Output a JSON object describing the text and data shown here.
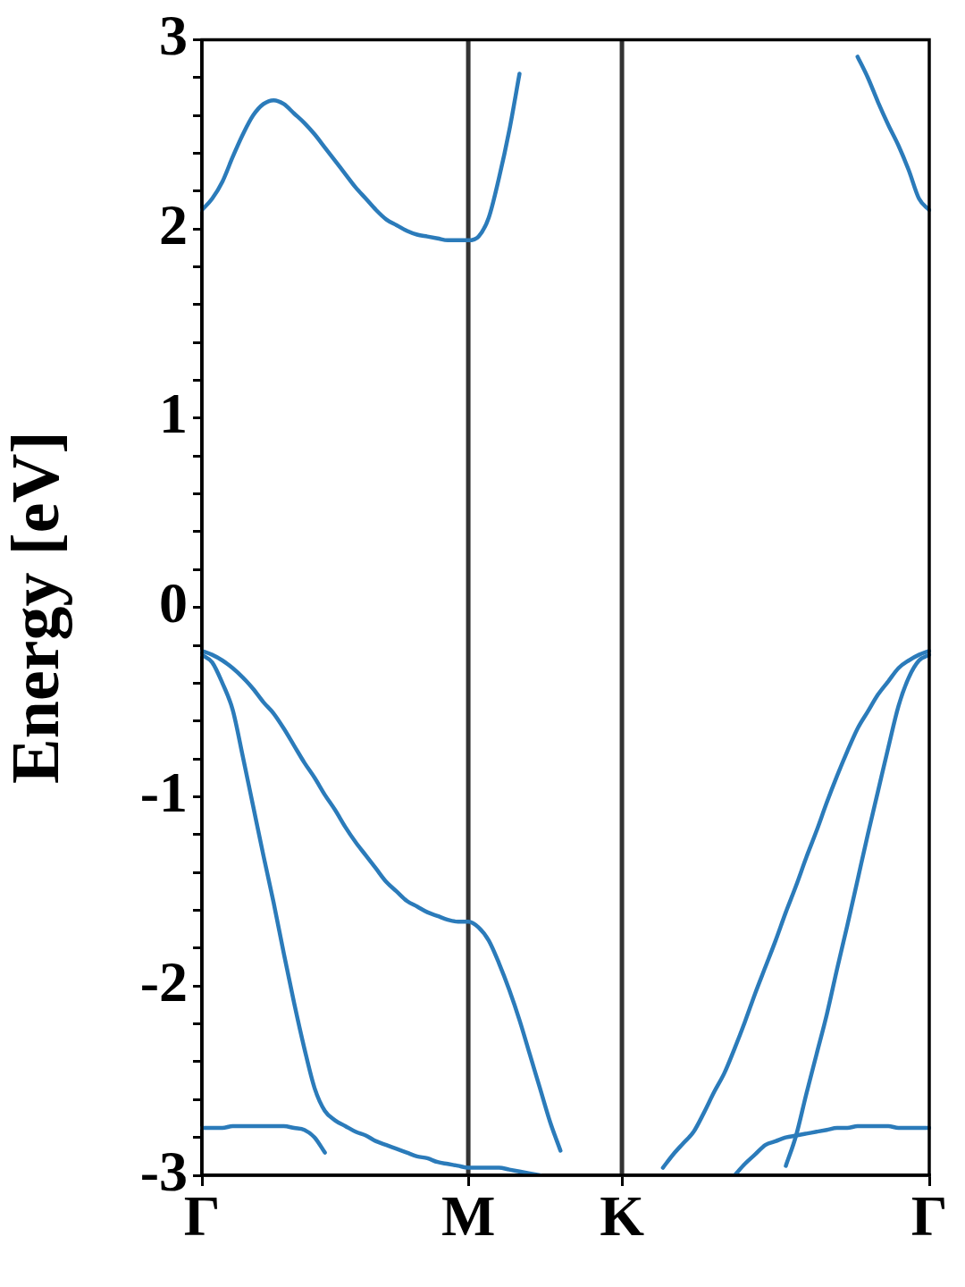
{
  "chart_data": {
    "type": "line",
    "ylabel": "Energy [eV]",
    "ylim": [
      -3,
      3
    ],
    "categories": [
      "Γ",
      null,
      null,
      null,
      null,
      null,
      null,
      null,
      null,
      null,
      null,
      null,
      null,
      null,
      null,
      null,
      null,
      null,
      null,
      null,
      null,
      null,
      null,
      null,
      null,
      null,
      "M",
      null,
      null,
      null,
      null,
      null,
      null,
      null,
      null,
      null,
      null,
      null,
      null,
      null,
      null,
      "K",
      null,
      null,
      null,
      null,
      null,
      null,
      null,
      null,
      null,
      null,
      null,
      null,
      null,
      null,
      null,
      null,
      null,
      null,
      null,
      null,
      null,
      null,
      null,
      null,
      null,
      null,
      null,
      null,
      null,
      "Γ"
    ],
    "yticks": [
      -3,
      {
        "value": -2.8,
        "label": null
      },
      {
        "value": -2.6,
        "label": null
      },
      {
        "value": -2.4,
        "label": null
      },
      {
        "value": -2.2,
        "label": null
      },
      -2,
      {
        "value": -1.8,
        "label": null
      },
      {
        "value": -1.6,
        "label": null
      },
      {
        "value": -1.4,
        "label": null
      },
      {
        "value": -1.2,
        "label": null
      },
      -1,
      {
        "value": -0.8,
        "label": null
      },
      {
        "value": -0.6,
        "label": null
      },
      {
        "value": -0.4,
        "label": null
      },
      {
        "value": -0.2,
        "label": null
      },
      0,
      {
        "value": 0.2,
        "label": null
      },
      {
        "value": 0.4,
        "label": null
      },
      {
        "value": 0.6,
        "label": null
      },
      {
        "value": 0.8,
        "label": null
      },
      1,
      {
        "value": 1.2,
        "label": null
      },
      {
        "value": 1.4,
        "label": null
      },
      {
        "value": 1.6,
        "label": null
      },
      {
        "value": 1.8,
        "label": null
      },
      2,
      {
        "value": 2.2,
        "label": null
      },
      {
        "value": 2.4,
        "label": null
      },
      {
        "value": 2.6,
        "label": null
      },
      {
        "value": 2.8,
        "label": null
      },
      3
    ],
    "marker": "none",
    "line_style": "solid",
    "ref_lines": [
      {
        "axis": "x",
        "value": "M",
        "color": "#333333"
      },
      {
        "axis": "x",
        "value": "K",
        "color": "#333333"
      }
    ],
    "series": [
      {
        "color": "#2b7bba",
        "values": [
          2.1,
          2.16,
          2.25,
          2.38,
          2.5,
          2.6,
          2.66,
          2.68,
          2.66,
          2.61,
          2.56,
          2.5,
          2.43,
          2.36,
          2.29,
          2.22,
          2.16,
          2.1,
          2.05,
          2.02,
          1.99,
          1.97,
          1.96,
          1.95,
          1.94,
          1.94,
          1.94,
          1.96,
          2.06,
          2.27,
          2.52,
          2.82,
          null,
          null,
          null,
          null,
          null,
          null,
          null,
          null,
          null,
          null,
          null,
          null,
          null,
          null,
          null,
          null,
          null,
          null,
          null,
          null,
          null,
          null,
          null,
          null,
          null,
          null,
          null,
          null,
          null,
          null,
          null,
          null,
          2.91,
          2.8,
          2.67,
          2.55,
          2.44,
          2.31,
          2.16,
          2.1
        ]
      },
      {
        "color": "#2b7bba",
        "values": [
          -0.23,
          -0.25,
          -0.28,
          -0.32,
          -0.37,
          -0.43,
          -0.5,
          -0.56,
          -0.64,
          -0.73,
          -0.82,
          -0.9,
          -0.99,
          -1.07,
          -1.16,
          -1.24,
          -1.31,
          -1.38,
          -1.45,
          -1.5,
          -1.55,
          -1.58,
          -1.61,
          -1.63,
          -1.65,
          -1.66,
          -1.66,
          -1.69,
          -1.76,
          -1.88,
          -2.02,
          -2.18,
          -2.36,
          -2.54,
          -2.72,
          -2.87,
          null,
          null,
          null,
          null,
          null,
          null,
          null,
          null,
          null,
          -2.96,
          -2.89,
          -2.83,
          -2.77,
          -2.67,
          -2.56,
          -2.46,
          -2.33,
          -2.19,
          -2.04,
          -1.9,
          -1.76,
          -1.61,
          -1.47,
          -1.32,
          -1.18,
          -1.03,
          -0.89,
          -0.76,
          -0.64,
          -0.55,
          -0.46,
          -0.39,
          -0.32,
          -0.28,
          -0.25,
          -0.23
        ]
      },
      {
        "color": "#2b7bba",
        "values": [
          -0.25,
          -0.29,
          -0.4,
          -0.54,
          -0.79,
          -1.05,
          -1.31,
          -1.56,
          -1.83,
          -2.09,
          -2.33,
          -2.54,
          -2.66,
          -2.71,
          -2.74,
          -2.77,
          -2.79,
          -2.82,
          -2.84,
          -2.86,
          -2.88,
          -2.9,
          -2.91,
          -2.93,
          -2.94,
          -2.95,
          -2.96,
          -2.96,
          -2.96,
          -2.96,
          -2.97,
          -2.98,
          -2.99,
          -3.0,
          null,
          null,
          null,
          null,
          null,
          null,
          null,
          null,
          null,
          null,
          null,
          null,
          null,
          null,
          null,
          null,
          null,
          null,
          null,
          null,
          null,
          null,
          null,
          -2.95,
          -2.79,
          -2.57,
          -2.36,
          -2.15,
          -1.91,
          -1.68,
          -1.44,
          -1.2,
          -0.97,
          -0.74,
          -0.52,
          -0.37,
          -0.28,
          -0.25
        ]
      },
      {
        "color": "#2b7bba",
        "values": [
          -2.75,
          -2.75,
          -2.75,
          -2.74,
          -2.74,
          -2.74,
          -2.74,
          -2.74,
          -2.74,
          -2.75,
          -2.76,
          -2.8,
          -2.88,
          null,
          null,
          null,
          null,
          null,
          null,
          null,
          null,
          null,
          null,
          null,
          null,
          null,
          null,
          null,
          null,
          null,
          null,
          null,
          null,
          null,
          null,
          null,
          null,
          null,
          null,
          null,
          null,
          null,
          null,
          null,
          null,
          null,
          null,
          null,
          null,
          null,
          null,
          null,
          -3.0,
          -2.94,
          -2.89,
          -2.84,
          -2.82,
          -2.8,
          -2.79,
          -2.78,
          -2.77,
          -2.76,
          -2.75,
          -2.75,
          -2.74,
          -2.74,
          -2.74,
          -2.74,
          -2.75,
          -2.75,
          -2.75,
          -2.75
        ]
      }
    ]
  }
}
